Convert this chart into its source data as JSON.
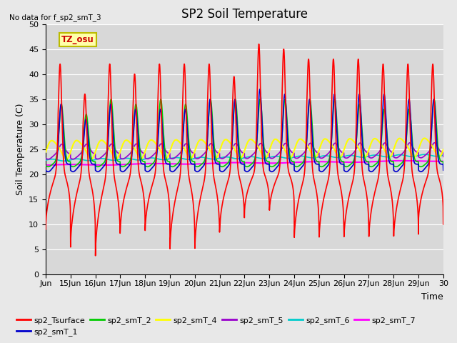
{
  "title": "SP2 Soil Temperature",
  "ylabel": "Soil Temperature (C)",
  "xlabel": "Time",
  "no_data_text": "No data for f_sp2_smT_3",
  "tz_label": "TZ_osu",
  "ylim": [
    0,
    50
  ],
  "yticks": [
    0,
    5,
    10,
    15,
    20,
    25,
    30,
    35,
    40,
    45,
    50
  ],
  "x_start": 14,
  "x_end": 30,
  "xtick_labels": [
    "Jun",
    "15Jun",
    "16Jun",
    "17Jun",
    "18Jun",
    "19Jun",
    "20Jun",
    "21Jun",
    "22Jun",
    "23Jun",
    "24Jun",
    "25Jun",
    "26Jun",
    "27Jun",
    "28Jun",
    "29Jun",
    "30"
  ],
  "xtick_positions": [
    14,
    15,
    16,
    17,
    18,
    19,
    20,
    21,
    22,
    23,
    24,
    25,
    26,
    27,
    28,
    29,
    30
  ],
  "series_colors": {
    "sp2_Tsurface": "#ff0000",
    "sp2_smT_1": "#0000cc",
    "sp2_smT_2": "#00cc00",
    "sp2_smT_4": "#ffff00",
    "sp2_smT_5": "#9900cc",
    "sp2_smT_6": "#00cccc",
    "sp2_smT_7": "#ff00ff"
  },
  "fig_facecolor": "#e8e8e8",
  "plot_facecolor": "#d8d8d8",
  "title_fontsize": 12,
  "label_fontsize": 9,
  "tick_fontsize": 8,
  "legend_fontsize": 8
}
